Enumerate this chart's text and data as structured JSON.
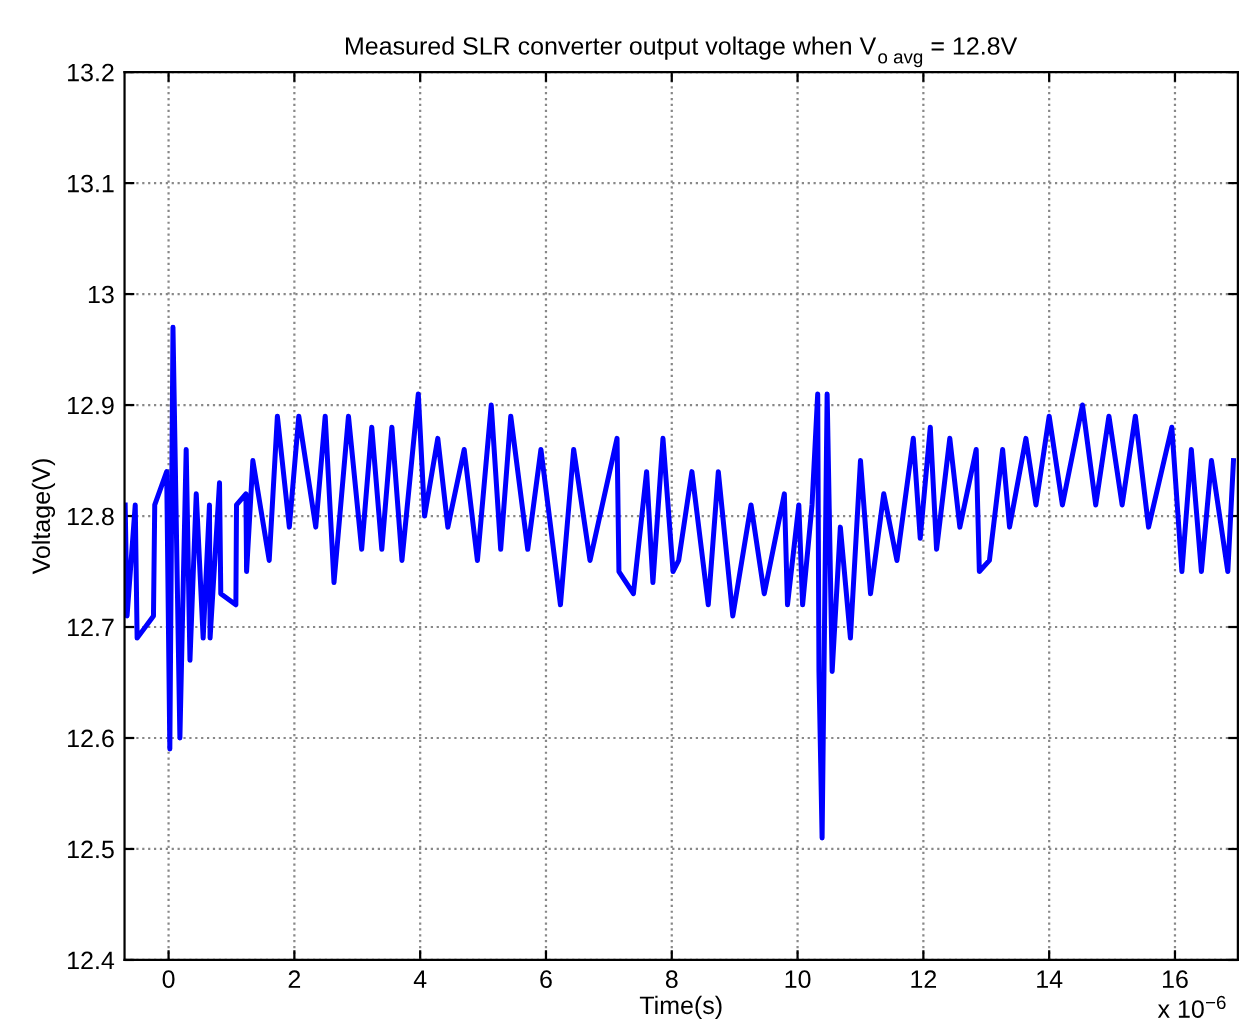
{
  "chart_data": {
    "type": "line",
    "title": "Measured SLR converter output voltage when V$_{o avg}$ = 12.8V",
    "xlabel": "Time(s)",
    "ylabel": "Voltage(V)",
    "annotations": [
      "x 10$^{−6}$"
    ],
    "xlim": [
      -0.7,
      17
    ],
    "ylim": [
      12.4,
      13.2
    ],
    "xticks": [
      0,
      2,
      4,
      6,
      8,
      10,
      12,
      14,
      16
    ],
    "yticks": [
      12.4,
      12.5,
      12.6,
      12.7,
      12.8,
      12.9,
      13,
      13.1,
      13.2
    ],
    "grid": true,
    "line_style": "solid",
    "series": [
      {
        "color": "#0000ff",
        "x": [
          -0.69,
          -0.66,
          -0.53,
          -0.5,
          -0.24,
          -0.22,
          -0.03,
          0.02,
          0.07,
          0.18,
          0.28,
          0.34,
          0.44,
          0.55,
          0.65,
          0.66,
          0.81,
          0.83,
          1.07,
          1.08,
          1.23,
          1.24,
          1.34,
          1.6,
          1.73,
          1.92,
          2.07,
          2.34,
          2.49,
          2.63,
          2.86,
          3.07,
          3.23,
          3.39,
          3.55,
          3.71,
          3.97,
          4.07,
          4.28,
          4.44,
          4.7,
          4.91,
          5.13,
          5.28,
          5.44,
          5.71,
          5.92,
          6.23,
          6.44,
          6.7,
          7.13,
          7.16,
          7.39,
          7.6,
          7.7,
          7.86,
          8.02,
          8.11,
          8.32,
          8.58,
          8.74,
          8.97,
          9.26,
          9.47,
          9.79,
          9.84,
          10.02,
          10.08,
          10.23,
          10.32,
          10.34,
          10.39,
          10.47,
          10.55,
          10.68,
          10.84,
          11.0,
          11.16,
          11.37,
          11.58,
          11.84,
          11.95,
          12.11,
          12.21,
          12.42,
          12.58,
          12.84,
          12.89,
          13.05,
          13.26,
          13.37,
          13.63,
          13.79,
          14.0,
          14.21,
          14.53,
          14.74,
          14.95,
          15.16,
          15.37,
          15.58,
          15.95,
          16.11,
          16.26,
          16.42,
          16.58,
          16.84,
          16.93
        ],
        "values": [
          12.81,
          12.71,
          12.81,
          12.69,
          12.71,
          12.81,
          12.84,
          12.59,
          12.97,
          12.6,
          12.86,
          12.67,
          12.82,
          12.69,
          12.81,
          12.69,
          12.83,
          12.73,
          12.72,
          12.81,
          12.82,
          12.75,
          12.85,
          12.76,
          12.89,
          12.79,
          12.89,
          12.79,
          12.89,
          12.74,
          12.89,
          12.77,
          12.88,
          12.77,
          12.88,
          12.76,
          12.91,
          12.8,
          12.87,
          12.79,
          12.86,
          12.76,
          12.9,
          12.77,
          12.89,
          12.77,
          12.86,
          12.72,
          12.86,
          12.76,
          12.87,
          12.75,
          12.73,
          12.84,
          12.74,
          12.87,
          12.75,
          12.76,
          12.84,
          12.72,
          12.84,
          12.71,
          12.81,
          12.73,
          12.82,
          12.72,
          12.81,
          12.72,
          12.81,
          12.91,
          12.66,
          12.51,
          12.91,
          12.66,
          12.79,
          12.69,
          12.85,
          12.73,
          12.82,
          12.76,
          12.87,
          12.78,
          12.88,
          12.77,
          12.87,
          12.79,
          12.86,
          12.75,
          12.76,
          12.86,
          12.79,
          12.87,
          12.81,
          12.89,
          12.81,
          12.9,
          12.81,
          12.89,
          12.81,
          12.89,
          12.79,
          12.88,
          12.75,
          12.86,
          12.75,
          12.85,
          12.75,
          12.85
        ]
      }
    ]
  }
}
